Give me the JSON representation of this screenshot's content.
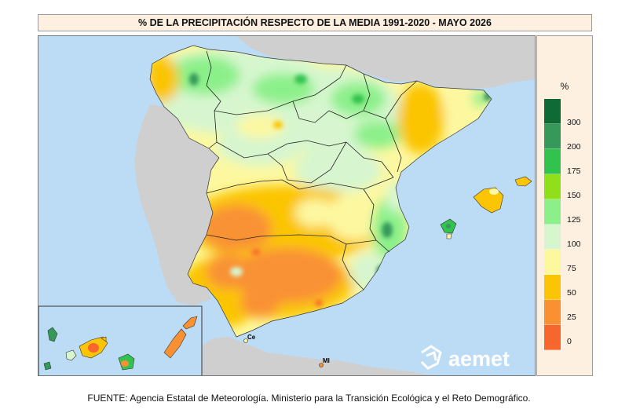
{
  "title": "% DE LA PRECIPITACIÓN RESPECTO DE LA MEDIA 1991-2020 - MAYO 2026",
  "legend": {
    "unit": "%",
    "classes": [
      {
        "label": "300",
        "color": "#0f6b36"
      },
      {
        "label": "200",
        "color": "#35995a"
      },
      {
        "label": "175",
        "color": "#32c24e"
      },
      {
        "label": "150",
        "color": "#8fe01a"
      },
      {
        "label": "125",
        "color": "#8cf08a"
      },
      {
        "label": "100",
        "color": "#d7f6cf"
      },
      {
        "label": "75",
        "color": "#fdf8a0"
      },
      {
        "label": "50",
        "color": "#fbc505"
      },
      {
        "label": "25",
        "color": "#f99134"
      },
      {
        "label": "0",
        "color": "#f7662d"
      }
    ]
  },
  "map_labels": {
    "ceuta": "Ce",
    "melilla": "Ml"
  },
  "logo": {
    "text": "aemet"
  },
  "source": "FUENTE: Agencia Estatal de Meteorología. Ministerio para la Transición Ecológica y el Reto Demográfico.",
  "colors": {
    "sea": "#bcdcf5",
    "land_neighbors": "#cfcfcf",
    "title_background": "#fdf0e0"
  }
}
